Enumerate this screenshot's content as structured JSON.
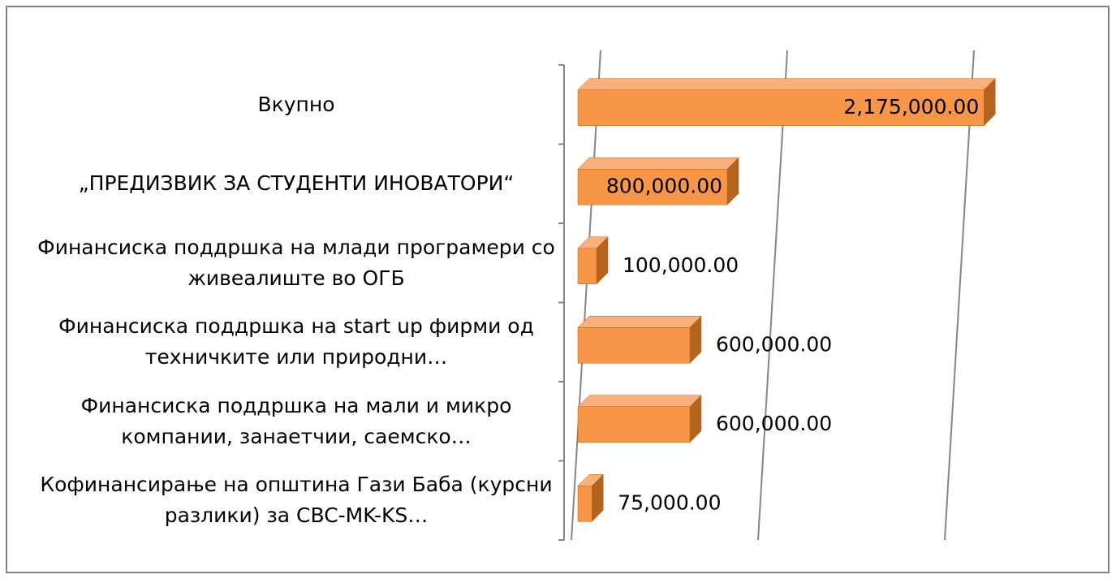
{
  "chart_data": {
    "type": "bar3d_horizontal",
    "categories": [
      "Вкупно",
      "„ПРЕДИЗВИК ЗА СТУДЕНТИ ИНОВАТОРИ“",
      "Финансиска поддршка на млади програмери со живеалиште во ОГБ",
      "Финансиска поддршка на start up фирми од техничките или природни…",
      "Финансиска поддршка на мали и микро компании, занаетчии, саемско…",
      "Кофинансирање на општина Гази Баба (курсни разлики) за CBC-MK-KS…"
    ],
    "values": [
      2175000,
      800000,
      100000,
      600000,
      600000,
      75000
    ],
    "value_labels": [
      "2,175,000.00",
      "800,000.00",
      "100,000.00",
      "600,000.00",
      "600,000.00",
      "75,000.00"
    ],
    "color": "#f79646",
    "xlim": [
      0,
      2000000
    ],
    "xticks": [
      0,
      1000000,
      2000000
    ],
    "grid": true
  }
}
